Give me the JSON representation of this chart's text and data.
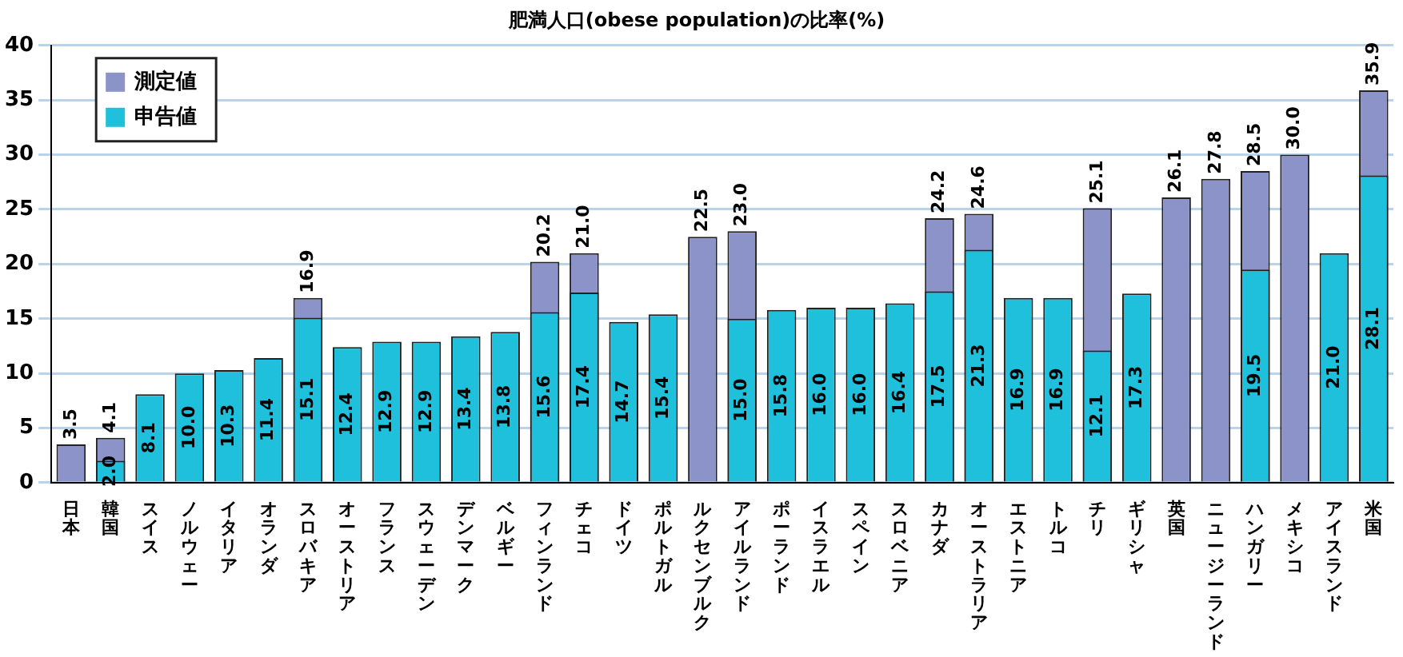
{
  "chart_data": {
    "type": "bar",
    "title": "肥満人口(obese population)の比率(%)",
    "categories": [
      "日本",
      "韓国",
      "スイス",
      "ノルウェー",
      "イタリア",
      "オランダ",
      "スロバキア",
      "オーストリア",
      "フランス",
      "スウェーデン",
      "デンマーク",
      "ベルギー",
      "フィンランド",
      "チェコ",
      "ドイツ",
      "ポルトガル",
      "ルクセンブルク",
      "アイルランド",
      "ポーランド",
      "イスラエル",
      "スペイン",
      "スロベニア",
      "カナダ",
      "オーストラリア",
      "エストニア",
      "トルコ",
      "チリ",
      "ギリシャ",
      "英国",
      "ニュージーランド",
      "ハンガリー",
      "メキシコ",
      "アイスランド",
      "米国"
    ],
    "series": [
      {
        "name": "測定値",
        "color": "#8b93c8",
        "values": [
          3.5,
          4.1,
          null,
          null,
          null,
          null,
          16.9,
          null,
          null,
          null,
          null,
          null,
          20.2,
          21.0,
          null,
          null,
          22.5,
          23.0,
          null,
          null,
          null,
          null,
          24.2,
          24.6,
          null,
          null,
          25.1,
          null,
          26.1,
          27.8,
          28.5,
          30.0,
          null,
          35.9
        ],
        "value_labels": [
          "3.5",
          "4.1",
          null,
          null,
          null,
          null,
          "16.9",
          null,
          null,
          null,
          null,
          null,
          "20.2",
          "21.0",
          null,
          null,
          "22.5",
          "23.0",
          null,
          null,
          null,
          null,
          "24.2",
          "24.6",
          null,
          null,
          "25.1",
          null,
          "26.1",
          "27.8",
          "28.5",
          "30.0",
          null,
          "35.9"
        ]
      },
      {
        "name": "申告値",
        "color": "#1ec0dc",
        "values": [
          null,
          2.0,
          8.1,
          10.0,
          10.3,
          11.4,
          15.1,
          12.4,
          12.9,
          12.9,
          13.4,
          13.8,
          15.6,
          17.4,
          14.7,
          15.4,
          null,
          15.0,
          15.8,
          16.0,
          16.0,
          16.4,
          17.5,
          21.3,
          16.9,
          16.9,
          12.1,
          17.3,
          null,
          null,
          19.5,
          null,
          21.0,
          28.1
        ],
        "value_labels": [
          null,
          "2.0",
          "8.1",
          "10.0",
          "10.3",
          "11.4",
          "15.1",
          "12.4",
          "12.9",
          "12.9",
          "13.4",
          "13.8",
          "15.6",
          "17.4",
          "14.7",
          "15.4",
          null,
          "15.0",
          "15.8",
          "16.0",
          "16.0",
          "16.4",
          "17.5",
          "21.3",
          "16.9",
          "16.9",
          "12.1",
          "17.3",
          null,
          null,
          "19.5",
          null,
          "21.0",
          "28.1"
        ]
      }
    ],
    "ylim": [
      0,
      40
    ],
    "yticks": [
      0,
      5,
      10,
      15,
      20,
      25,
      30,
      35,
      40
    ],
    "grid": "y",
    "legend": "top left"
  }
}
